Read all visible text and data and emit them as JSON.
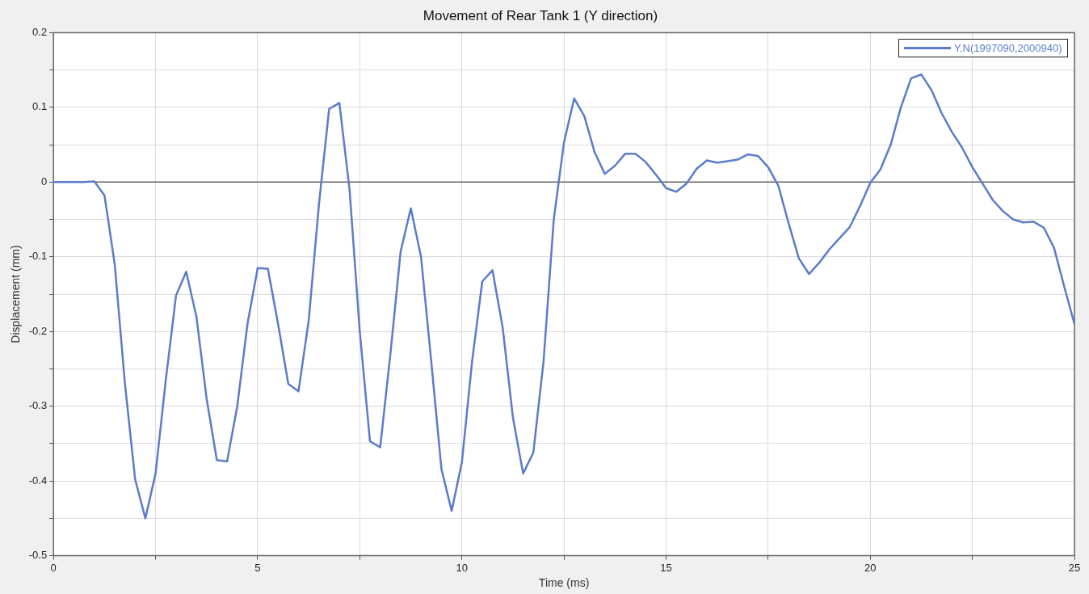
{
  "chart_data": {
    "type": "line",
    "title": "Movement of Rear Tank 1 (Y direction)",
    "xlabel": "Time (ms)",
    "ylabel": "Displacement (mm)",
    "x": [
      0,
      0.5,
      0.75,
      1,
      1.25,
      1.5,
      1.75,
      2,
      2.25,
      2.5,
      2.75,
      3,
      3.25,
      3.5,
      3.75,
      4,
      4.25,
      4.5,
      4.75,
      5,
      5.25,
      5.5,
      5.75,
      6,
      6.25,
      6.5,
      6.75,
      7,
      7.25,
      7.5,
      7.75,
      8,
      8.25,
      8.5,
      8.75,
      9,
      9.25,
      9.5,
      9.75,
      10,
      10.25,
      10.5,
      10.75,
      11,
      11.25,
      11.5,
      11.75,
      12,
      12.25,
      12.5,
      12.75,
      13,
      13.25,
      13.5,
      13.75,
      14,
      14.25,
      14.5,
      14.75,
      15,
      15.25,
      15.5,
      15.75,
      16,
      16.25,
      16.5,
      16.75,
      17,
      17.25,
      17.5,
      17.75,
      18,
      18.25,
      18.5,
      18.75,
      19,
      19.25,
      19.5,
      19.75,
      20,
      20.25,
      20.5,
      20.75,
      21,
      21.25,
      21.5,
      21.75,
      22,
      22.25,
      22.5,
      22.75,
      23,
      23.25,
      23.5,
      23.75,
      24,
      24.25,
      24.5,
      24.75,
      25
    ],
    "series": [
      {
        "name": "Y.N(1997090,2000940)",
        "color": "#5b7ccc",
        "values": [
          0,
          0,
          0,
          0.001,
          -0.018,
          -0.11,
          -0.27,
          -0.398,
          -0.45,
          -0.39,
          -0.265,
          -0.152,
          -0.12,
          -0.18,
          -0.29,
          -0.372,
          -0.374,
          -0.3,
          -0.19,
          -0.115,
          -0.116,
          -0.19,
          -0.27,
          -0.28,
          -0.185,
          -0.03,
          0.098,
          0.106,
          -0.01,
          -0.2,
          -0.347,
          -0.355,
          -0.23,
          -0.093,
          -0.035,
          -0.1,
          -0.24,
          -0.384,
          -0.44,
          -0.375,
          -0.24,
          -0.133,
          -0.118,
          -0.195,
          -0.315,
          -0.39,
          -0.362,
          -0.24,
          -0.05,
          0.053,
          0.112,
          0.088,
          0.04,
          0.011,
          0.022,
          0.038,
          0.038,
          0.027,
          0.01,
          -0.008,
          -0.013,
          -0.002,
          0.018,
          0.029,
          0.026,
          0.028,
          0.03,
          0.037,
          0.035,
          0.02,
          -0.005,
          -0.055,
          -0.102,
          -0.123,
          -0.108,
          -0.09,
          -0.075,
          -0.06,
          -0.032,
          -0.001,
          0.017,
          0.05,
          0.1,
          0.139,
          0.144,
          0.123,
          0.092,
          0.067,
          0.046,
          0.02,
          -0.002,
          -0.024,
          -0.039,
          -0.05,
          -0.054,
          -0.053,
          -0.061,
          -0.088,
          -0.14,
          -0.19
        ]
      }
    ],
    "xlim": [
      0,
      25
    ],
    "xticks": [
      0,
      {
        "value": 2.5,
        "label": null
      },
      5,
      {
        "value": 7.5,
        "label": null
      },
      10,
      {
        "value": 12.5,
        "label": null
      },
      15,
      {
        "value": 17.5,
        "label": null
      },
      20,
      {
        "value": 22.5,
        "label": null
      },
      25
    ],
    "ylim": [
      -0.5,
      0.2
    ],
    "yticks": [
      -0.5,
      {
        "value": -0.45,
        "label": null
      },
      -0.4,
      {
        "value": -0.35,
        "label": null
      },
      -0.3,
      {
        "value": -0.25,
        "label": null
      },
      -0.2,
      {
        "value": -0.15,
        "label": null
      },
      -0.1,
      {
        "value": -0.05,
        "label": null
      },
      0,
      {
        "value": 0.05,
        "label": null
      },
      0.1,
      {
        "value": 0.15,
        "label": null
      },
      0.2
    ],
    "ref_lines": [
      {
        "axis": "y",
        "value": 0,
        "color": "#666666"
      }
    ],
    "grid": true,
    "legend": "top right",
    "marker": "none",
    "line_style": "solid"
  }
}
